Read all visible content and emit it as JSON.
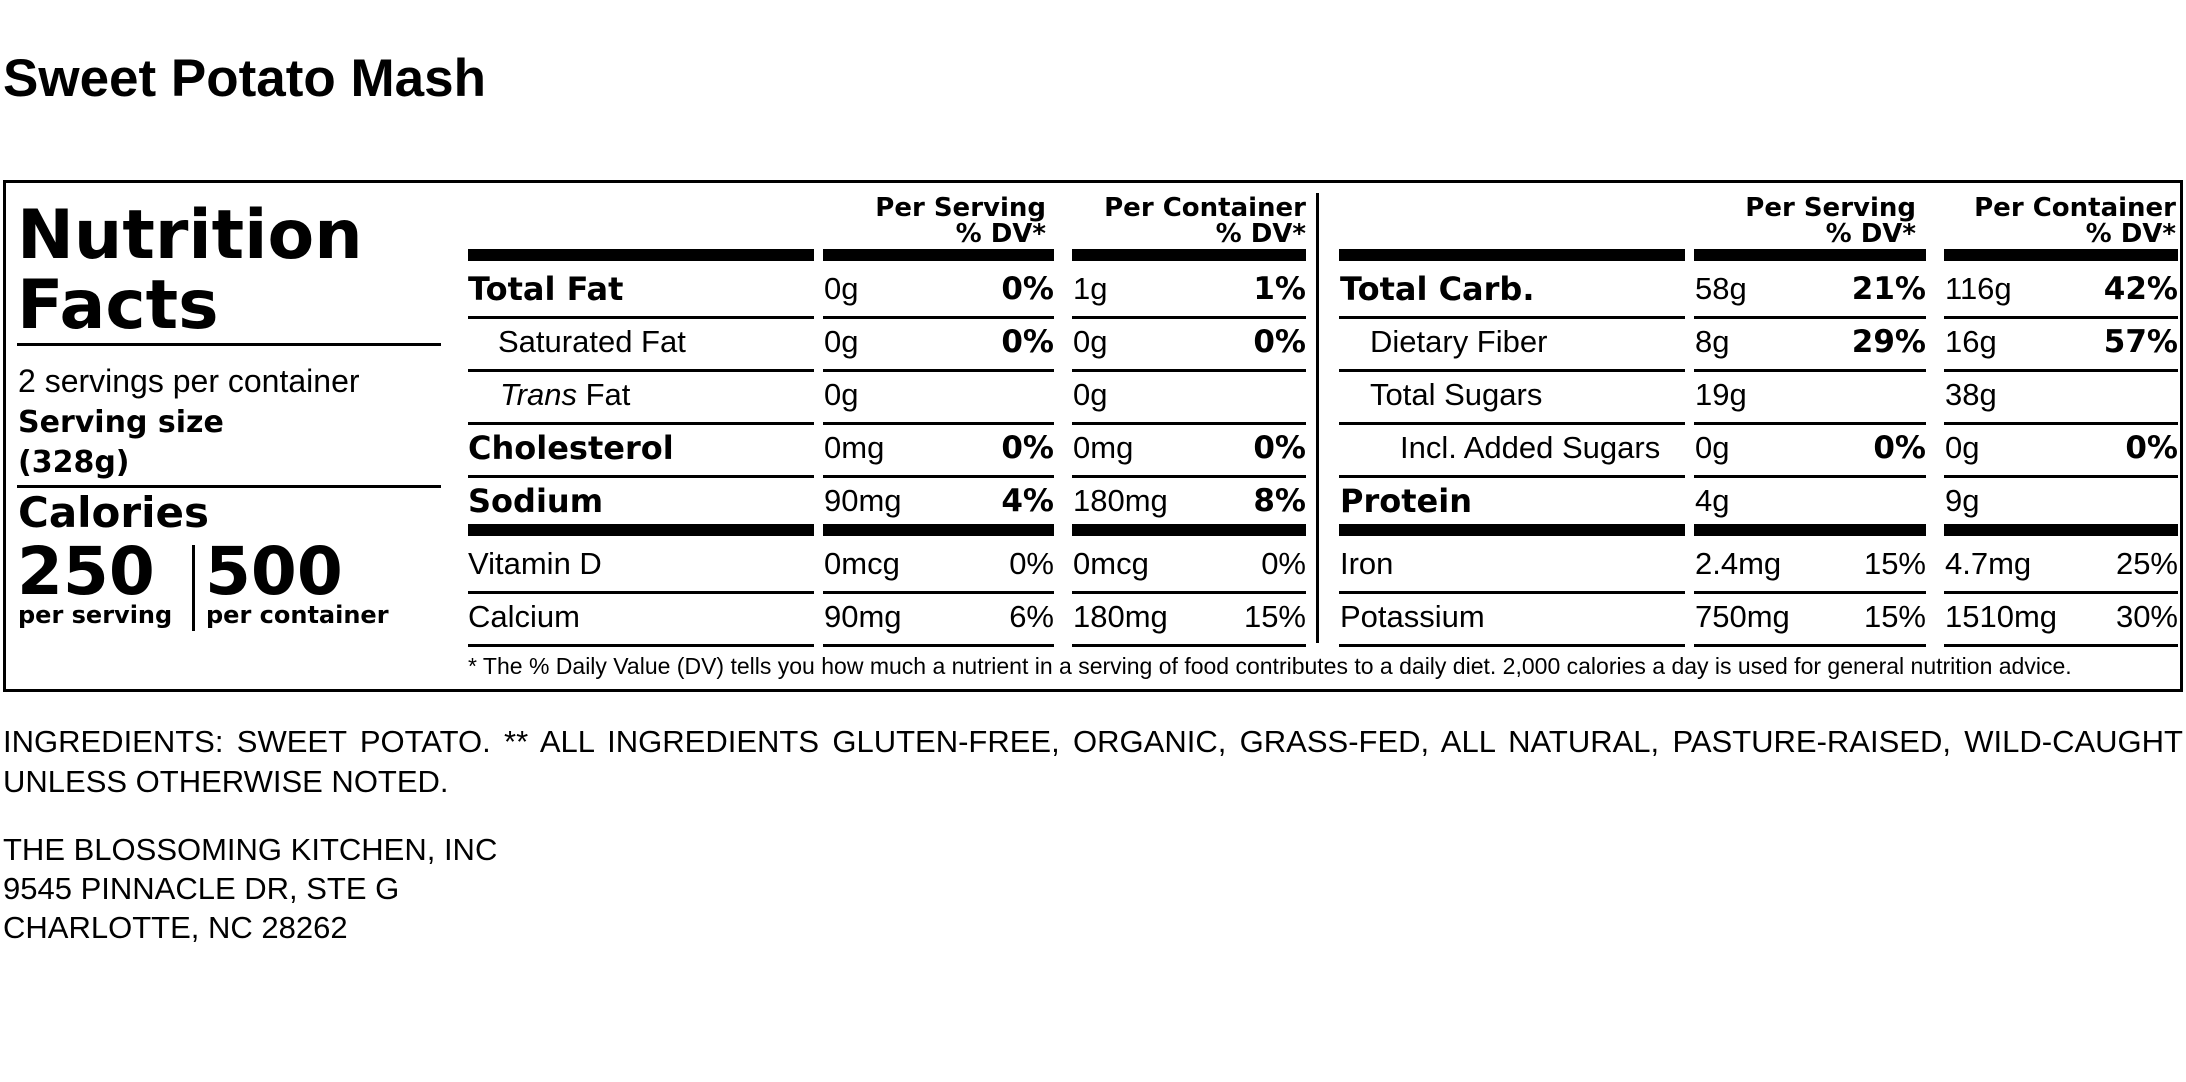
{
  "product_name": "Sweet Potato Mash",
  "panel": {
    "title_line1": "Nutrition",
    "title_line2": "Facts",
    "servings_per_container": "2 servings per container",
    "serving_size_label": "Serving size",
    "serving_size_value": "(328g)",
    "calories_label": "Calories",
    "calories_per_serving": "250",
    "per_serving_label": "per serving",
    "calories_per_container": "500",
    "per_container_label": "per container",
    "headers": {
      "per_serving_line1": "Per Serving",
      "per_container_line1": "Per Container",
      "dv_line2": "% DV*"
    },
    "left_rows": [
      {
        "name": "Total Fat",
        "bold": true,
        "ps_amt": "0g",
        "ps_dv": "0%",
        "pc_amt": "1g",
        "pc_dv": "1%"
      },
      {
        "name": "Saturated Fat",
        "bold": false,
        "ps_amt": "0g",
        "ps_dv": "0%",
        "pc_amt": "0g",
        "pc_dv": "0%"
      },
      {
        "name_italic": "Trans",
        "name": " Fat",
        "bold": false,
        "ps_amt": "0g",
        "ps_dv": "",
        "pc_amt": "0g",
        "pc_dv": ""
      },
      {
        "name": "Cholesterol",
        "bold": true,
        "ps_amt": "0mg",
        "ps_dv": "0%",
        "pc_amt": "0mg",
        "pc_dv": "0%"
      },
      {
        "name": "Sodium",
        "bold": true,
        "ps_amt": "90mg",
        "ps_dv": "4%",
        "pc_amt": "180mg",
        "pc_dv": "8%"
      },
      {
        "name": "Vitamin D",
        "bold": false,
        "ps_amt": "0mcg",
        "ps_dv": "0%",
        "pc_amt": "0mcg",
        "pc_dv": "0%"
      },
      {
        "name": "Calcium",
        "bold": false,
        "ps_amt": "90mg",
        "ps_dv": "6%",
        "pc_amt": "180mg",
        "pc_dv": "15%"
      }
    ],
    "right_rows": [
      {
        "name": "Total Carb.",
        "bold": true,
        "ps_amt": "58g",
        "ps_dv": "21%",
        "pc_amt": "116g",
        "pc_dv": "42%"
      },
      {
        "name": "Dietary Fiber",
        "bold": false,
        "ps_amt": "8g",
        "ps_dv": "29%",
        "pc_amt": "16g",
        "pc_dv": "57%"
      },
      {
        "name": "Total Sugars",
        "bold": false,
        "ps_amt": "19g",
        "ps_dv": "",
        "pc_amt": "38g",
        "pc_dv": ""
      },
      {
        "name": "Incl. Added Sugars",
        "bold": false,
        "ps_amt": "0g",
        "ps_dv": "0%",
        "pc_amt": "0g",
        "pc_dv": "0%"
      },
      {
        "name": "Protein",
        "bold": true,
        "ps_amt": "4g",
        "ps_dv": "",
        "pc_amt": "9g",
        "pc_dv": ""
      },
      {
        "name": "Iron",
        "bold": false,
        "ps_amt": "2.4mg",
        "ps_dv": "15%",
        "pc_amt": "4.7mg",
        "pc_dv": "25%"
      },
      {
        "name": "Potassium",
        "bold": false,
        "ps_amt": "750mg",
        "ps_dv": "15%",
        "pc_amt": "1510mg",
        "pc_dv": "30%"
      }
    ],
    "footnote": "* The % Daily Value (DV) tells you how much a nutrient in a serving of food contributes to a daily diet. 2,000 calories a day is used for general nutrition advice."
  },
  "ingredients": "INGREDIENTS: SWEET POTATO. ** ALL INGREDIENTS GLUTEN-FREE, ORGANIC, GRASS-FED, ALL NATURAL, PASTURE-RAISED, WILD-CAUGHT UNLESS OTHERWISE NOTED.",
  "address": {
    "line1": "THE BLOSSOMING KITCHEN, INC",
    "line2": "9545 PINNACLE DR, STE G",
    "line3": "CHARLOTTE, NC 28262"
  }
}
